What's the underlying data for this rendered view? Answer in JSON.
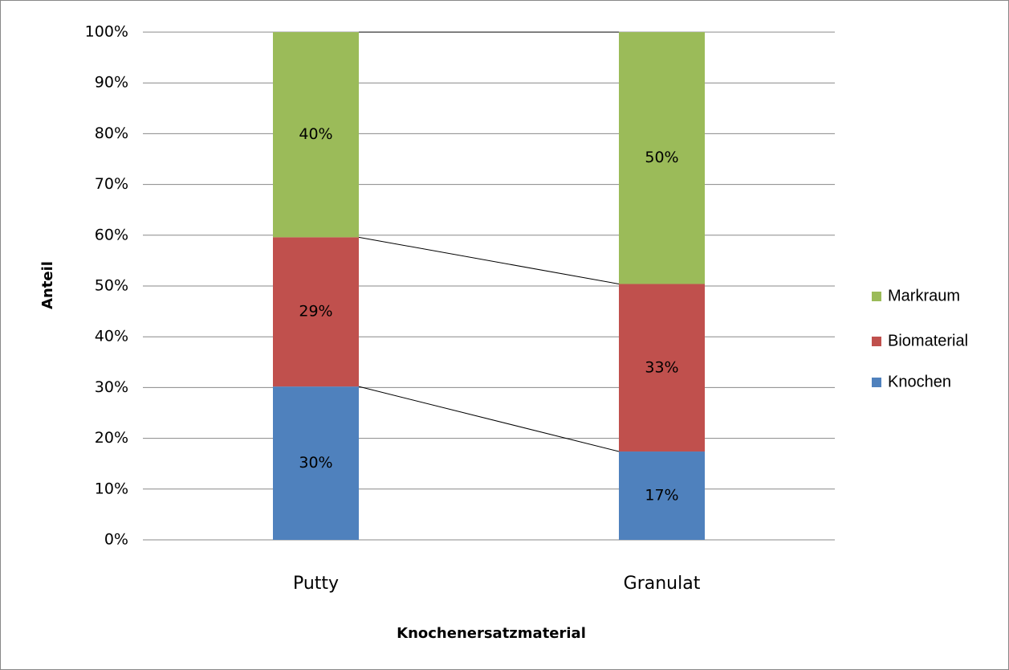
{
  "chart_data": {
    "type": "stacked_bar",
    "x_label": "Knochenersatzmaterial",
    "y_label": "Anteil",
    "categories": [
      "Putty",
      "Granulat"
    ],
    "series": [
      {
        "name": "Knochen",
        "color": "#4f81bd",
        "values": [
          30.2,
          17.4
        ],
        "value_labels": [
          "30%",
          "17%"
        ]
      },
      {
        "name": "Biomaterial",
        "color": "#c0504d",
        "values": [
          29.4,
          33.0
        ],
        "value_labels": [
          "29%",
          "33%"
        ]
      },
      {
        "name": "Markraum",
        "color": "#9bbb59",
        "values": [
          40.4,
          49.6
        ],
        "value_labels": [
          "40%",
          "50%"
        ]
      }
    ],
    "ylim": [
      0,
      100
    ],
    "yticks": [
      {
        "value": 0,
        "label": "0%"
      },
      {
        "value": 10,
        "label": "10%"
      },
      {
        "value": 20,
        "label": "20%"
      },
      {
        "value": 30,
        "label": "30%"
      },
      {
        "value": 40,
        "label": "40%"
      },
      {
        "value": 50,
        "label": "50%"
      },
      {
        "value": 60,
        "label": "60%"
      },
      {
        "value": 70,
        "label": "70%"
      },
      {
        "value": 80,
        "label": "80%"
      },
      {
        "value": 90,
        "label": "90%"
      },
      {
        "value": 100,
        "label": "100%"
      }
    ],
    "grid": true,
    "legend": "right"
  }
}
